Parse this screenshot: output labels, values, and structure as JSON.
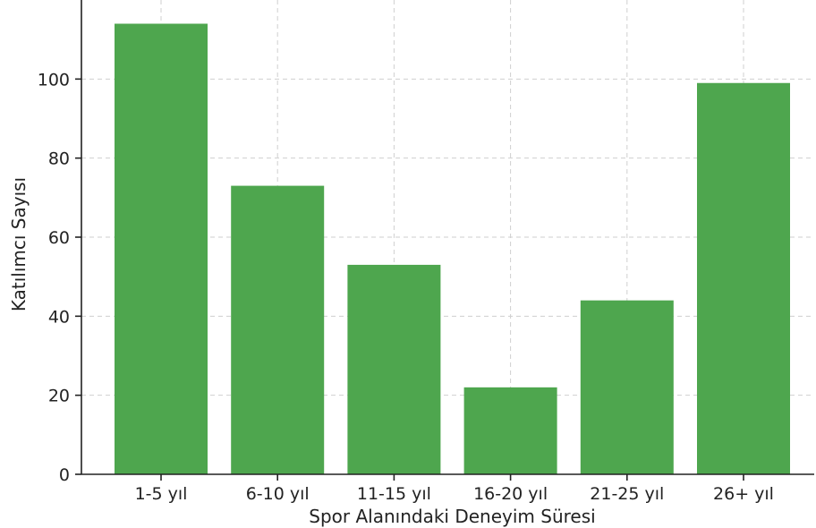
{
  "chart_data": {
    "type": "bar",
    "categories": [
      "1-5 yıl",
      "6-10 yıl",
      "11-15 yıl",
      "16-20 yıl",
      "21-25 yıl",
      "26+ yıl"
    ],
    "values": [
      114,
      73,
      53,
      22,
      44,
      99
    ],
    "xlabel": "Spor Alanındaki Deneyim Süresi",
    "ylabel": "Katılımcı Sayısı",
    "ylim": [
      0,
      120
    ],
    "yticks": [
      0,
      20,
      40,
      60,
      80,
      100
    ],
    "grid": true,
    "bar_color": "#4ea64e"
  }
}
